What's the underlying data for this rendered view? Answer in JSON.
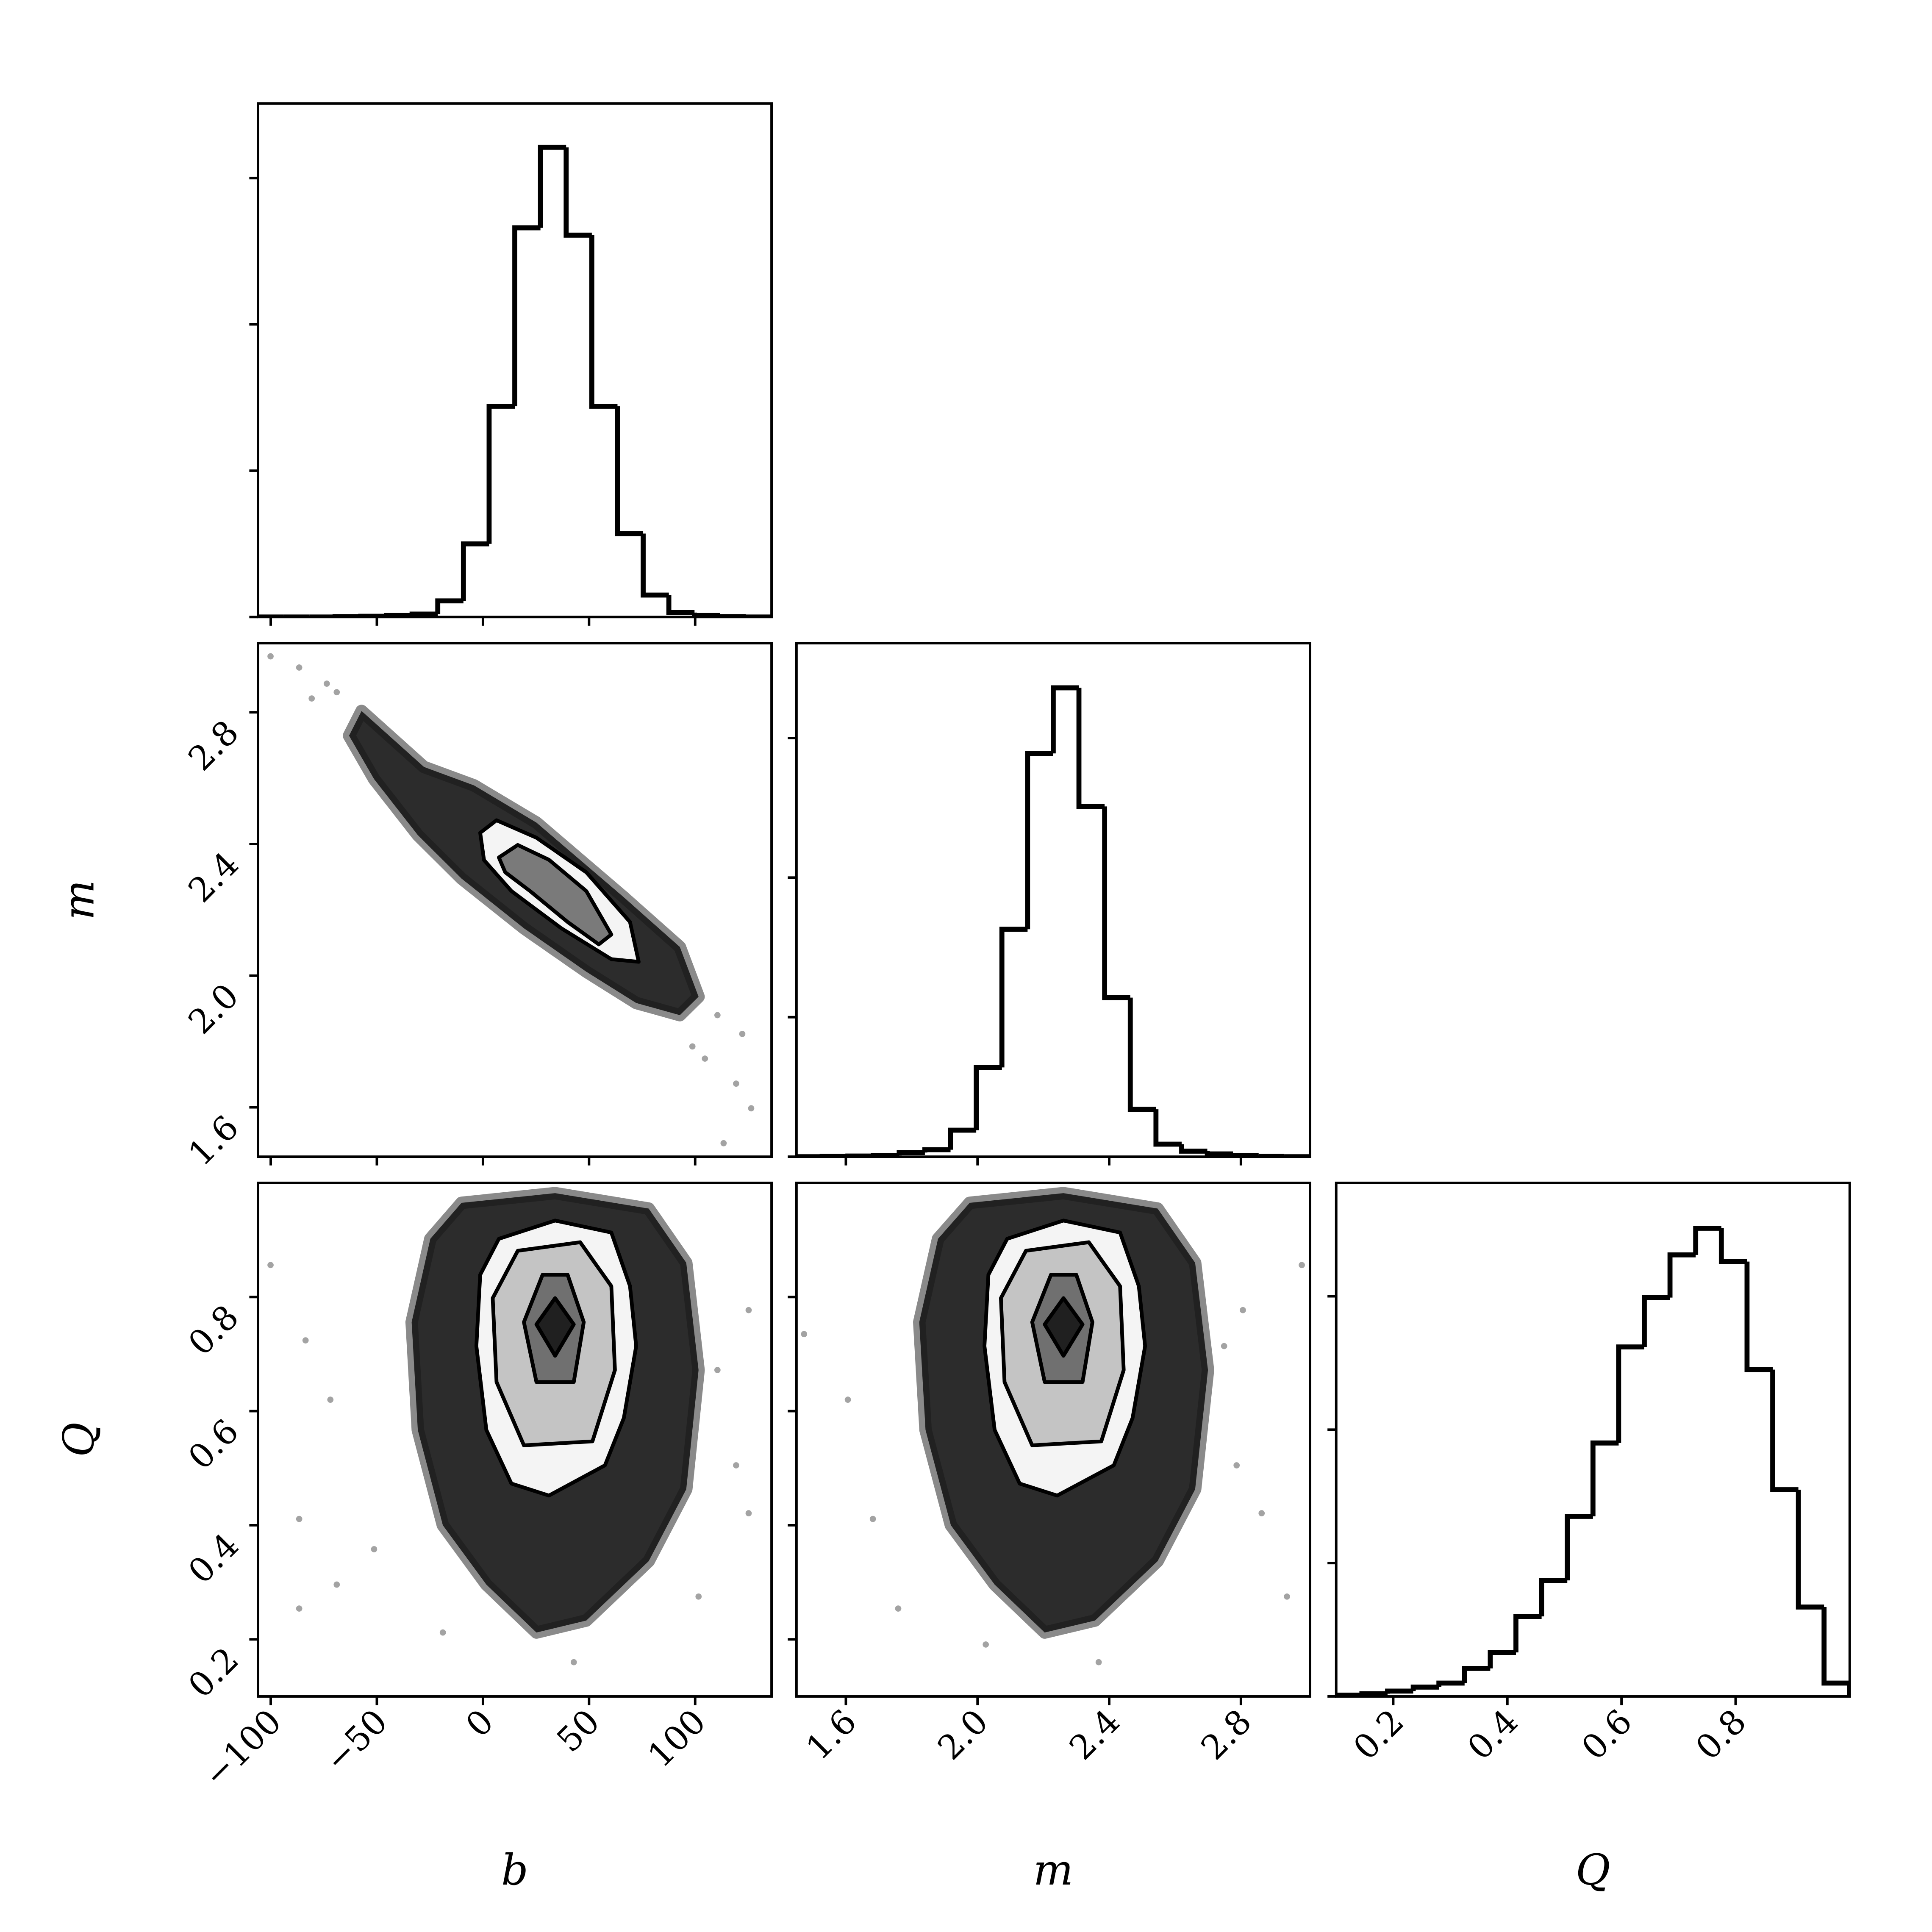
{
  "chart_data": [
    {
      "type": "histogram",
      "color": "#000000",
      "bins": [
        -106,
        -93.9,
        -81.8,
        -69.7,
        -57.6,
        -45.5,
        -33.4,
        -21.3,
        -9.2,
        2.9,
        15,
        27.1,
        39.2,
        51.3,
        63.4,
        75.5,
        87.6,
        99.7,
        111.8,
        123.9,
        136
      ],
      "counts": [
        0,
        0,
        0,
        0.003,
        0.005,
        0.01,
        0.02,
        0.11,
        0.5,
        1.44,
        2.66,
        3.21,
        2.61,
        1.44,
        0.57,
        0.15,
        0.03,
        0.01,
        0.003,
        0
      ],
      "xlim": [
        -106,
        136
      ],
      "ylim": [
        0,
        3.51
      ],
      "yticks": [
        0,
        1,
        2,
        3
      ],
      "xticks": [
        {
          "value": -100,
          "label": "−100"
        },
        {
          "value": -50,
          "label": "−50"
        },
        0,
        50,
        100
      ]
    },
    {
      "type": "density",
      "line_color": "#000000",
      "xlim": [
        -106,
        136
      ],
      "ylim": [
        1.45,
        3.01
      ],
      "xticks": [
        {
          "value": -100,
          "label": "−100"
        },
        {
          "value": -50,
          "label": "−50"
        },
        0,
        50,
        100
      ],
      "yticks": [
        1.6,
        {
          "value": 2,
          "label": "2.0"
        },
        2.4,
        2.8
      ],
      "ylabel": "m",
      "points": {
        "x": [
          -100.1,
          -86.6,
          -73.6,
          -80.7,
          110.5,
          119.3,
          126.4,
          113.4,
          104.6,
          122.2,
          -68.9,
          98.7
        ],
        "y": [
          2.97,
          2.936,
          2.887,
          2.842,
          1.88,
          1.672,
          1.597,
          1.491,
          1.748,
          1.823,
          2.861,
          1.785
        ]
      },
      "contours": [
        {
          "color": "#151515",
          "line": false,
          "x": [
            -57.2,
            -27.8,
            -4.2,
            25.2,
            66.4,
            92.8,
            101.6,
            92.8,
            72.2,
            48.7,
            19.3,
            -10.1,
            -30.7,
            -51.3,
            -63.1
          ],
          "y": [
            2.804,
            2.634,
            2.578,
            2.465,
            2.238,
            2.087,
            1.936,
            1.88,
            1.917,
            2.012,
            2.144,
            2.295,
            2.427,
            2.597,
            2.729
          ]
        },
        {
          "color": "#f4f4f4",
          "line": true,
          "x": [
            -1.3,
            6.4,
            25.2,
            48.7,
            69.3,
            73.4,
            60.5,
            36.9,
            13.4,
            0.5
          ],
          "y": [
            2.434,
            2.472,
            2.419,
            2.314,
            2.163,
            2.042,
            2.05,
            2.144,
            2.257,
            2.351
          ]
        },
        {
          "color": "#7a7a7a",
          "line": true,
          "x": [
            7.5,
            16.4,
            31.1,
            48.7,
            60.5,
            54.6,
            39.9,
            22.2,
            10.5
          ],
          "y": [
            2.359,
            2.397,
            2.352,
            2.257,
            2.125,
            2.095,
            2.163,
            2.257,
            2.314
          ]
        }
      ]
    },
    {
      "type": "histogram",
      "color": "#000000",
      "bins": [
        1.45,
        1.528,
        1.606,
        1.684,
        1.762,
        1.84,
        1.918,
        1.996,
        2.074,
        2.152,
        2.23,
        2.308,
        2.386,
        2.464,
        2.542,
        2.62,
        2.698,
        2.776,
        2.854,
        2.932,
        3.01
      ],
      "counts": [
        0,
        0.003,
        0.005,
        0.01,
        0.03,
        0.05,
        0.19,
        0.64,
        1.63,
        2.89,
        3.36,
        2.51,
        1.14,
        0.34,
        0.09,
        0.04,
        0.02,
        0.01,
        0.003,
        0
      ],
      "xlim": [
        1.45,
        3.01
      ],
      "ylim": [
        0,
        3.68
      ],
      "yticks": [
        0,
        1,
        2,
        3
      ],
      "xticks": [
        1.6,
        {
          "value": 2,
          "label": "2.0"
        },
        2.4,
        2.8
      ]
    },
    {
      "type": "density",
      "line_color": "#000000",
      "xlim": [
        -106,
        136
      ],
      "ylim": [
        0.1,
        1.0
      ],
      "xticks": [
        {
          "value": -100,
          "label": "−100"
        },
        {
          "value": -50,
          "label": "−50"
        },
        0,
        50,
        100
      ],
      "yticks": [
        0.2,
        0.4,
        0.6,
        0.8
      ],
      "xlabel": "b",
      "ylabel": "Q",
      "points": {
        "x": [
          -100.1,
          -83.6,
          -71.9,
          -86.6,
          -68.9,
          -51.3,
          101.6,
          119.3,
          125.2,
          110.5,
          125.2,
          -18.9,
          42.8,
          -86.6
        ],
        "y": [
          0.856,
          0.724,
          0.62,
          0.411,
          0.296,
          0.358,
          0.275,
          0.505,
          0.421,
          0.672,
          0.777,
          0.212,
          0.16,
          0.254
        ]
      },
      "contours": [
        {
          "color": "#151515",
          "line": false,
          "x": [
            -10.1,
            34,
            78.1,
            95.8,
            101.6,
            95.8,
            78.1,
            48.7,
            25.2,
            1.6,
            -18.9,
            -30.7,
            -33.6,
            -24.8
          ],
          "y": [
            0.965,
            0.982,
            0.955,
            0.86,
            0.672,
            0.463,
            0.337,
            0.233,
            0.212,
            0.296,
            0.4,
            0.567,
            0.756,
            0.902
          ]
        },
        {
          "color": "#f4f4f4",
          "line": true,
          "x": [
            7.5,
            34,
            60.5,
            69.3,
            72.2,
            66.4,
            57.5,
            31.1,
            13.4,
            1.6,
            -3.1,
            -1.3
          ],
          "y": [
            0.902,
            0.934,
            0.913,
            0.819,
            0.714,
            0.588,
            0.505,
            0.452,
            0.473,
            0.567,
            0.714,
            0.839
          ]
        },
        {
          "color": "#c4c4c4",
          "line": true,
          "x": [
            16.4,
            45.8,
            60.5,
            62.2,
            51.6,
            19.3,
            6.4,
            4.6
          ],
          "y": [
            0.881,
            0.896,
            0.819,
            0.672,
            0.547,
            0.54,
            0.651,
            0.798
          ]
        },
        {
          "color": "#707070",
          "line": true,
          "x": [
            28.1,
            39.9,
            47.5,
            42.8,
            25.2,
            19.3
          ],
          "y": [
            0.839,
            0.839,
            0.756,
            0.651,
            0.651,
            0.756
          ]
        },
        {
          "color": "#202020",
          "line": true,
          "x": [
            34,
            42.8,
            34,
            25.2
          ],
          "y": [
            0.798,
            0.752,
            0.697,
            0.752
          ]
        }
      ]
    },
    {
      "type": "density",
      "line_color": "#000000",
      "xlim": [
        1.45,
        3.01
      ],
      "ylim": [
        0.1,
        1.0
      ],
      "xticks": [
        1.6,
        {
          "value": 2,
          "label": "2.0"
        },
        2.4,
        2.8
      ],
      "yticks": [
        0.2,
        0.4,
        0.6,
        0.8
      ],
      "xlabel": "m",
      "points": {
        "x": [
          2.985,
          1.473,
          1.606,
          1.682,
          1.759,
          2.787,
          2.863,
          2.749,
          2.806,
          2.025,
          2.368,
          2.94
        ],
        "y": [
          0.856,
          0.735,
          0.62,
          0.411,
          0.254,
          0.505,
          0.421,
          0.714,
          0.777,
          0.191,
          0.16,
          0.275
        ]
      },
      "contours": [
        {
          "color": "#151515",
          "line": false,
          "x": [
            1.976,
            2.261,
            2.547,
            2.661,
            2.7,
            2.661,
            2.547,
            2.357,
            2.204,
            2.052,
            1.919,
            1.842,
            1.823,
            1.88
          ],
          "y": [
            0.965,
            0.982,
            0.955,
            0.86,
            0.672,
            0.463,
            0.337,
            0.233,
            0.212,
            0.296,
            0.4,
            0.567,
            0.756,
            0.902
          ]
        },
        {
          "color": "#f4f4f4",
          "line": true,
          "x": [
            2.09,
            2.261,
            2.433,
            2.49,
            2.509,
            2.471,
            2.414,
            2.242,
            2.128,
            2.052,
            2.021,
            2.033
          ],
          "y": [
            0.902,
            0.934,
            0.913,
            0.819,
            0.714,
            0.588,
            0.505,
            0.452,
            0.473,
            0.567,
            0.714,
            0.839
          ]
        },
        {
          "color": "#c4c4c4",
          "line": true,
          "x": [
            2.147,
            2.338,
            2.433,
            2.444,
            2.376,
            2.166,
            2.082,
            2.071
          ],
          "y": [
            0.881,
            0.896,
            0.819,
            0.672,
            0.547,
            0.54,
            0.651,
            0.798
          ]
        },
        {
          "color": "#707070",
          "line": true,
          "x": [
            2.223,
            2.3,
            2.349,
            2.319,
            2.204,
            2.166
          ],
          "y": [
            0.839,
            0.839,
            0.756,
            0.651,
            0.651,
            0.756
          ]
        },
        {
          "color": "#202020",
          "line": true,
          "x": [
            2.261,
            2.319,
            2.261,
            2.204
          ],
          "y": [
            0.798,
            0.752,
            0.697,
            0.752
          ]
        }
      ]
    },
    {
      "type": "histogram",
      "color": "#000000",
      "bins": [
        0.1,
        0.145,
        0.19,
        0.235,
        0.28,
        0.325,
        0.37,
        0.415,
        0.46,
        0.505,
        0.55,
        0.595,
        0.64,
        0.685,
        0.73,
        0.775,
        0.82,
        0.865,
        0.91,
        0.955,
        1.0
      ],
      "counts": [
        0.01,
        0.02,
        0.04,
        0.07,
        0.1,
        0.21,
        0.33,
        0.6,
        0.87,
        1.35,
        1.9,
        2.62,
        2.99,
        3.31,
        3.51,
        3.26,
        2.45,
        1.55,
        0.67,
        0.1
      ],
      "xlim": [
        0.1,
        1.0
      ],
      "ylim": [
        0,
        3.85
      ],
      "yticks": [
        0,
        1,
        2,
        3
      ],
      "xticks": [
        0.2,
        0.4,
        0.6,
        0.8
      ],
      "xlabel": "Q"
    }
  ]
}
